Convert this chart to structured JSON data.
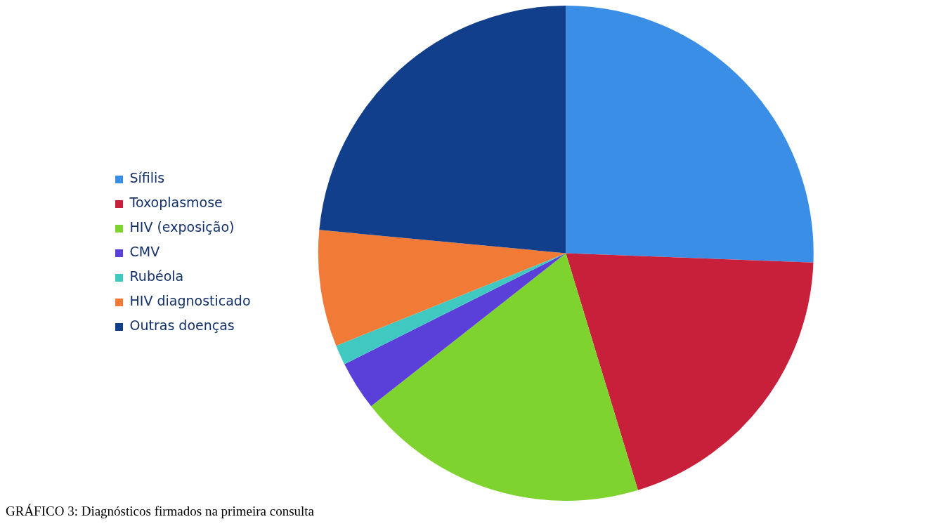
{
  "chart_data": {
    "type": "pie",
    "categories": [
      "Sífilis",
      "Toxoplasmose",
      "HIV (exposição)",
      "CMV",
      "Rubéola",
      "HIV diagnosticado",
      "Outras doenças"
    ],
    "values": [
      25.6,
      19.7,
      19.1,
      3.2,
      1.3,
      7.6,
      23.5
    ],
    "colors": [
      "#3a8ee6",
      "#c8203a",
      "#7ed32f",
      "#5a3fd8",
      "#3fc9c0",
      "#f07a36",
      "#123f8c"
    ],
    "legend": "left",
    "annotations": [
      "GRÁFICO 3: Diagnósticos firmados na primeira consulta"
    ]
  }
}
